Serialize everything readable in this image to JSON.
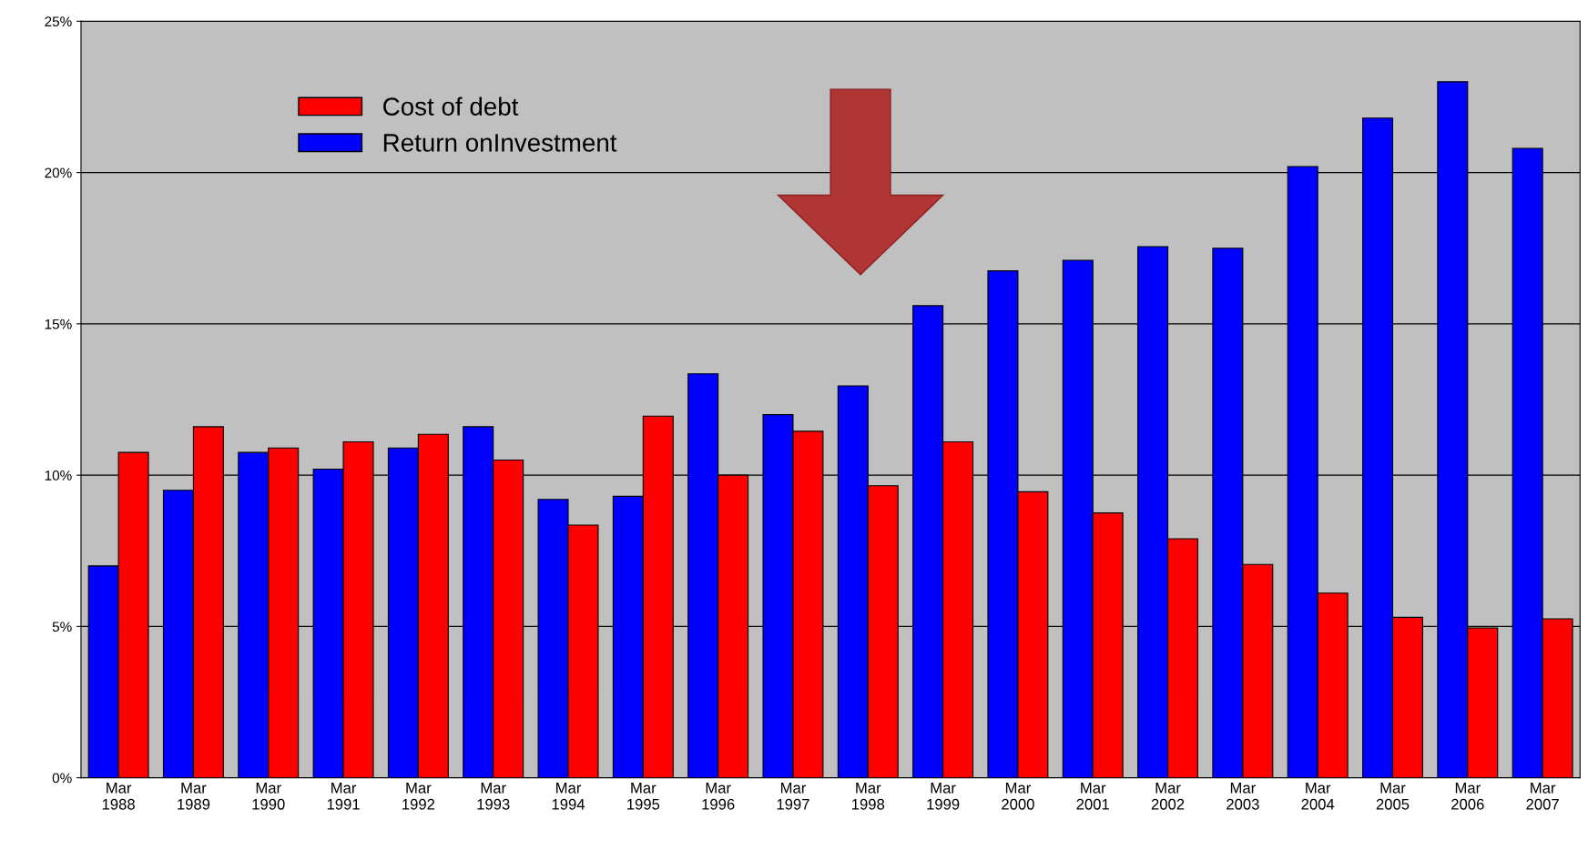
{
  "chart_data": {
    "type": "bar",
    "categories": [
      "Mar\n1988",
      "Mar\n1989",
      "Mar\n1990",
      "Mar\n1991",
      "Mar\n1992",
      "Mar\n1993",
      "Mar\n1994",
      "Mar\n1995",
      "Mar\n1996",
      "Mar\n1997",
      "Mar\n1998",
      "Mar\n1999",
      "Mar\n2000",
      "Mar\n2001",
      "Mar\n2002",
      "Mar\n2003",
      "Mar\n2004",
      "Mar\n2005",
      "Mar\n2006",
      "Mar\n2007"
    ],
    "series": [
      {
        "name": "Return onInvestment",
        "color": "#0000ff",
        "values": [
          7.0,
          9.5,
          10.75,
          10.2,
          10.9,
          11.6,
          9.2,
          9.3,
          13.35,
          12.0,
          12.95,
          15.6,
          16.75,
          17.1,
          17.55,
          17.5,
          20.2,
          21.8,
          23.0,
          20.8
        ]
      },
      {
        "name": "Cost of debt",
        "color": "#ff0000",
        "values": [
          10.75,
          11.6,
          10.9,
          11.1,
          11.35,
          10.5,
          8.35,
          11.95,
          10.0,
          11.45,
          9.65,
          11.1,
          9.45,
          8.75,
          7.9,
          7.05,
          6.1,
          5.3,
          4.95,
          5.25
        ]
      }
    ],
    "ylim": [
      0,
      25
    ],
    "yticks": [
      {
        "value": 0,
        "label": "0%"
      },
      {
        "value": 5,
        "label": "5%"
      },
      {
        "value": 10,
        "label": "10%"
      },
      {
        "value": 15,
        "label": "15%"
      },
      {
        "value": 20,
        "label": "20%"
      },
      {
        "value": 25,
        "label": "25%"
      }
    ],
    "grid": "y",
    "legend": "top left"
  }
}
